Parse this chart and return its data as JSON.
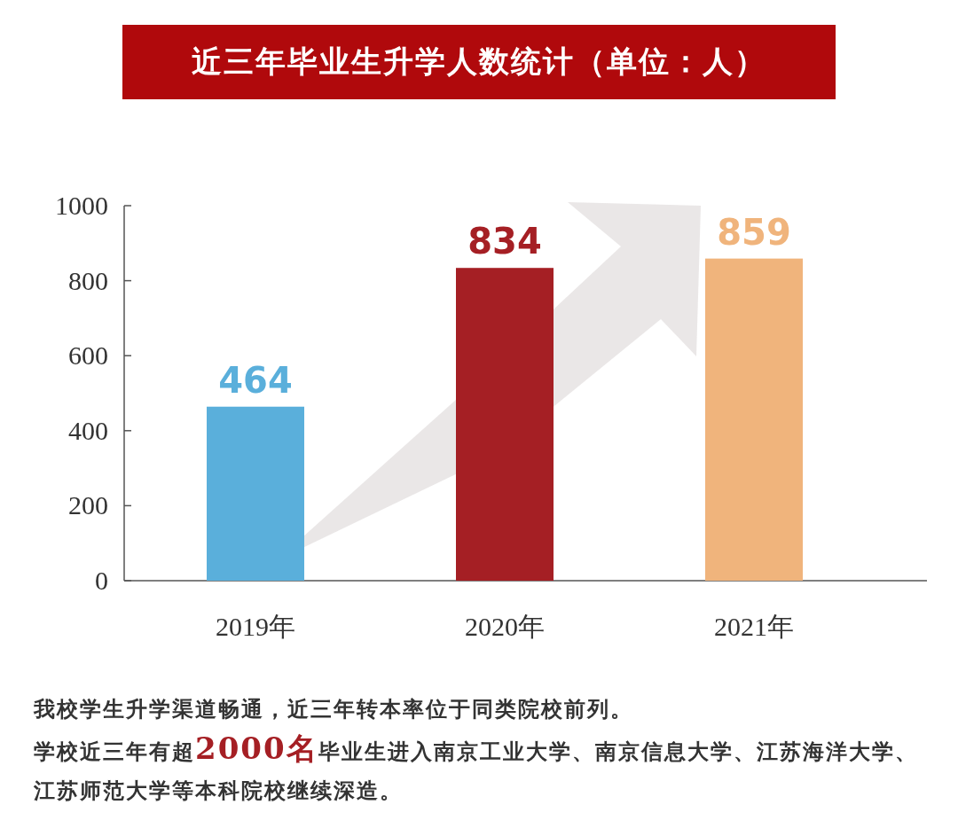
{
  "chart_data": {
    "type": "bar",
    "title": "近三年毕业生升学人数统计（单位：人）",
    "categories": [
      "2019年",
      "2020年",
      "2021年"
    ],
    "values": [
      464,
      834,
      859
    ],
    "colors": [
      "#5aafdb",
      "#a51f24",
      "#f0b47c"
    ],
    "ylim": [
      0,
      1000
    ],
    "yticks": [
      0,
      200,
      400,
      600,
      800,
      1000
    ],
    "data_labels": true,
    "annotations": [
      "我校学生升学渠道畅通，近三年转本率位于同类院校前列。",
      "学校近三年有超**2000名**毕业生进入南京工业大学、南京信息大学、江苏海洋大学、江苏师范大学等本科院校继续深造。"
    ]
  }
}
